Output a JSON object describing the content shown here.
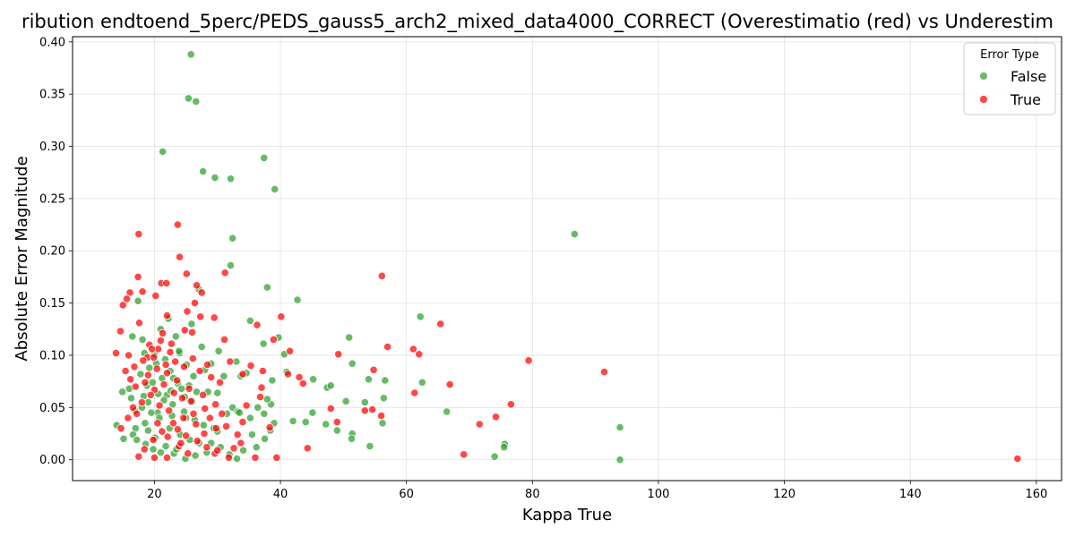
{
  "chart_data": {
    "type": "scatter",
    "title": "ribution endtoend_5perc/PEDS_gauss5_arch2_mixed_data4000_CORRECT (Overestimatio (red) vs Underestim",
    "xlabel": "Kappa True",
    "ylabel": "Absolute Error Magnitude",
    "xlim": [
      7,
      164
    ],
    "ylim": [
      -0.02,
      0.405
    ],
    "x_ticks": [
      20,
      40,
      60,
      80,
      100,
      120,
      140,
      160
    ],
    "y_ticks": [
      0.0,
      0.05,
      0.1,
      0.15,
      0.2,
      0.25,
      0.3,
      0.35,
      0.4
    ],
    "x_tick_labels": [
      "20",
      "40",
      "60",
      "80",
      "100",
      "120",
      "140",
      "160"
    ],
    "y_tick_labels": [
      "0.00",
      "0.05",
      "0.10",
      "0.15",
      "0.20",
      "0.25",
      "0.30",
      "0.35",
      "0.40"
    ],
    "grid": true,
    "legend": {
      "title": "Error Type",
      "placement": "upper-right"
    },
    "series": [
      {
        "name": "False",
        "color": "#2ca02c",
        "points": [
          [
            25.8,
            0.388
          ],
          [
            25.4,
            0.346
          ],
          [
            26.6,
            0.343
          ],
          [
            21.3,
            0.295
          ],
          [
            37.4,
            0.289
          ],
          [
            27.7,
            0.276
          ],
          [
            29.6,
            0.27
          ],
          [
            32.1,
            0.269
          ],
          [
            39.1,
            0.259
          ],
          [
            32.4,
            0.212
          ],
          [
            86.7,
            0.216
          ],
          [
            32.1,
            0.186
          ],
          [
            37.9,
            0.165
          ],
          [
            27.1,
            0.163
          ],
          [
            42.7,
            0.153
          ],
          [
            22.2,
            0.135
          ],
          [
            35.2,
            0.133
          ],
          [
            62.2,
            0.137
          ],
          [
            25.9,
            0.13
          ],
          [
            39.7,
            0.117
          ],
          [
            50.9,
            0.117
          ],
          [
            37.3,
            0.111
          ],
          [
            17.4,
            0.152
          ],
          [
            21.0,
            0.125
          ],
          [
            18.1,
            0.115
          ],
          [
            16.5,
            0.118
          ],
          [
            23.4,
            0.118
          ],
          [
            27.5,
            0.108
          ],
          [
            30.2,
            0.104
          ],
          [
            24.0,
            0.102
          ],
          [
            20.0,
            0.101
          ],
          [
            33.0,
            0.094
          ],
          [
            29.0,
            0.092
          ],
          [
            34.6,
            0.083
          ],
          [
            41.0,
            0.084
          ],
          [
            51.4,
            0.092
          ],
          [
            54.0,
            0.077
          ],
          [
            56.6,
            0.076
          ],
          [
            62.5,
            0.074
          ],
          [
            45.2,
            0.077
          ],
          [
            47.4,
            0.069
          ],
          [
            48.0,
            0.071
          ],
          [
            33.7,
            0.08
          ],
          [
            38.7,
            0.076
          ],
          [
            28.0,
            0.086
          ],
          [
            31.0,
            0.08
          ],
          [
            23.0,
            0.078
          ],
          [
            18.8,
            0.071
          ],
          [
            14.9,
            0.065
          ],
          [
            16.3,
            0.059
          ],
          [
            19.0,
            0.055
          ],
          [
            20.6,
            0.063
          ],
          [
            22.0,
            0.062
          ],
          [
            24.8,
            0.06
          ],
          [
            26.0,
            0.056
          ],
          [
            28.5,
            0.065
          ],
          [
            30.0,
            0.064
          ],
          [
            32.4,
            0.05
          ],
          [
            33.2,
            0.046
          ],
          [
            36.4,
            0.05
          ],
          [
            38.5,
            0.053
          ],
          [
            50.4,
            0.056
          ],
          [
            53.4,
            0.055
          ],
          [
            56.4,
            0.059
          ],
          [
            66.4,
            0.046
          ],
          [
            35.2,
            0.04
          ],
          [
            37.4,
            0.044
          ],
          [
            39.0,
            0.035
          ],
          [
            42.0,
            0.037
          ],
          [
            44.0,
            0.036
          ],
          [
            45.1,
            0.045
          ],
          [
            47.2,
            0.034
          ],
          [
            49.0,
            0.028
          ],
          [
            51.4,
            0.025
          ],
          [
            51.3,
            0.02
          ],
          [
            54.2,
            0.013
          ],
          [
            56.2,
            0.035
          ],
          [
            31.5,
            0.044
          ],
          [
            33.5,
            0.045
          ],
          [
            29.4,
            0.03
          ],
          [
            30.0,
            0.027
          ],
          [
            27.8,
            0.033
          ],
          [
            25.0,
            0.04
          ],
          [
            22.8,
            0.042
          ],
          [
            20.5,
            0.045
          ],
          [
            18.5,
            0.035
          ],
          [
            17.0,
            0.03
          ],
          [
            14.0,
            0.033
          ],
          [
            15.1,
            0.02
          ],
          [
            16.6,
            0.024
          ],
          [
            18.6,
            0.015
          ],
          [
            19.8,
            0.01
          ],
          [
            21.0,
            0.007
          ],
          [
            23.1,
            0.006
          ],
          [
            24.9,
            0.001
          ],
          [
            26.5,
            0.004
          ],
          [
            28.3,
            0.007
          ],
          [
            30.5,
            0.012
          ],
          [
            31.9,
            0.005
          ],
          [
            33.1,
            0.001
          ],
          [
            36.2,
            0.012
          ],
          [
            37.5,
            0.02
          ],
          [
            38.4,
            0.028
          ],
          [
            74.0,
            0.003
          ],
          [
            75.6,
            0.015
          ],
          [
            75.5,
            0.012
          ],
          [
            93.9,
            0.031
          ],
          [
            93.9,
            0.0
          ],
          [
            19.2,
            0.088
          ],
          [
            20.3,
            0.092
          ],
          [
            21.7,
            0.096
          ],
          [
            22.5,
            0.085
          ],
          [
            23.7,
            0.073
          ],
          [
            24.3,
            0.068
          ],
          [
            25.5,
            0.071
          ],
          [
            26.7,
            0.065
          ],
          [
            17.8,
            0.082
          ],
          [
            18.0,
            0.05
          ],
          [
            19.5,
            0.045
          ],
          [
            20.8,
            0.04
          ],
          [
            22.4,
            0.03
          ],
          [
            24.1,
            0.024
          ],
          [
            25.6,
            0.019
          ],
          [
            27.1,
            0.016
          ],
          [
            16.9,
            0.047
          ],
          [
            18.3,
            0.061
          ],
          [
            19.7,
            0.074
          ],
          [
            21.2,
            0.078
          ],
          [
            22.9,
            0.053
          ],
          [
            24.7,
            0.046
          ],
          [
            26.4,
            0.038
          ],
          [
            20.1,
            0.021
          ],
          [
            21.8,
            0.013
          ],
          [
            23.5,
            0.01
          ],
          [
            17.2,
            0.019
          ],
          [
            19.0,
            0.028
          ],
          [
            29.0,
            0.016
          ],
          [
            34.1,
            0.009
          ],
          [
            35.5,
            0.024
          ],
          [
            37.9,
            0.058
          ],
          [
            40.6,
            0.101
          ],
          [
            23.9,
            0.104
          ],
          [
            25.1,
            0.091
          ],
          [
            26.2,
            0.08
          ],
          [
            18.4,
            0.102
          ],
          [
            16.0,
            0.068
          ],
          [
            21.5,
            0.057
          ],
          [
            22.6,
            0.066
          ]
        ]
      },
      {
        "name": "True",
        "color": "#ff0000",
        "points": [
          [
            157.0,
            0.001
          ],
          [
            23.7,
            0.225
          ],
          [
            17.5,
            0.216
          ],
          [
            24.0,
            0.194
          ],
          [
            31.2,
            0.179
          ],
          [
            25.1,
            0.178
          ],
          [
            56.1,
            0.176
          ],
          [
            17.4,
            0.175
          ],
          [
            21.1,
            0.169
          ],
          [
            21.9,
            0.169
          ],
          [
            26.7,
            0.167
          ],
          [
            27.5,
            0.16
          ],
          [
            16.1,
            0.16
          ],
          [
            18.1,
            0.161
          ],
          [
            20.2,
            0.157
          ],
          [
            15.6,
            0.154
          ],
          [
            15.0,
            0.148
          ],
          [
            26.4,
            0.15
          ],
          [
            25.2,
            0.142
          ],
          [
            22.0,
            0.138
          ],
          [
            27.3,
            0.137
          ],
          [
            29.5,
            0.136
          ],
          [
            40.1,
            0.137
          ],
          [
            65.4,
            0.13
          ],
          [
            36.3,
            0.129
          ],
          [
            17.6,
            0.131
          ],
          [
            24.8,
            0.124
          ],
          [
            26.0,
            0.122
          ],
          [
            31.1,
            0.115
          ],
          [
            38.9,
            0.115
          ],
          [
            14.6,
            0.123
          ],
          [
            57.0,
            0.108
          ],
          [
            61.1,
            0.106
          ],
          [
            62.0,
            0.101
          ],
          [
            49.2,
            0.101
          ],
          [
            41.5,
            0.104
          ],
          [
            19.2,
            0.11
          ],
          [
            20.6,
            0.106
          ],
          [
            22.5,
            0.103
          ],
          [
            13.9,
            0.102
          ],
          [
            15.9,
            0.1
          ],
          [
            18.9,
            0.098
          ],
          [
            79.4,
            0.095
          ],
          [
            32.0,
            0.094
          ],
          [
            35.3,
            0.09
          ],
          [
            54.8,
            0.086
          ],
          [
            91.4,
            0.084
          ],
          [
            41.2,
            0.082
          ],
          [
            43.0,
            0.079
          ],
          [
            43.6,
            0.073
          ],
          [
            66.9,
            0.072
          ],
          [
            61.3,
            0.064
          ],
          [
            27.2,
            0.085
          ],
          [
            28.4,
            0.091
          ],
          [
            29.0,
            0.079
          ],
          [
            30.4,
            0.074
          ],
          [
            34.0,
            0.082
          ],
          [
            37.0,
            0.069
          ],
          [
            15.4,
            0.085
          ],
          [
            16.2,
            0.077
          ],
          [
            17.0,
            0.07
          ],
          [
            20.0,
            0.067
          ],
          [
            21.5,
            0.072
          ],
          [
            23.1,
            0.064
          ],
          [
            24.4,
            0.059
          ],
          [
            25.8,
            0.056
          ],
          [
            28.0,
            0.049
          ],
          [
            29.7,
            0.053
          ],
          [
            30.7,
            0.044
          ],
          [
            34.6,
            0.052
          ],
          [
            36.8,
            0.06
          ],
          [
            48.0,
            0.049
          ],
          [
            53.4,
            0.047
          ],
          [
            54.6,
            0.048
          ],
          [
            56.0,
            0.042
          ],
          [
            76.6,
            0.053
          ],
          [
            74.2,
            0.041
          ],
          [
            71.6,
            0.034
          ],
          [
            69.1,
            0.005
          ],
          [
            49.0,
            0.036
          ],
          [
            44.3,
            0.011
          ],
          [
            39.4,
            0.002
          ],
          [
            38.3,
            0.031
          ],
          [
            34.0,
            0.036
          ],
          [
            33.2,
            0.024
          ],
          [
            29.8,
            0.03
          ],
          [
            29.6,
            0.006
          ],
          [
            31.8,
            0.002
          ],
          [
            36.0,
            0.002
          ],
          [
            22.0,
            0.002
          ],
          [
            20.0,
            0.002
          ],
          [
            17.5,
            0.003
          ],
          [
            18.4,
            0.01
          ],
          [
            19.8,
            0.019
          ],
          [
            21.2,
            0.027
          ],
          [
            23.0,
            0.035
          ],
          [
            24.6,
            0.04
          ],
          [
            26.2,
            0.044
          ],
          [
            14.7,
            0.03
          ],
          [
            15.8,
            0.04
          ],
          [
            16.6,
            0.05
          ],
          [
            18.0,
            0.055
          ],
          [
            19.4,
            0.062
          ],
          [
            20.8,
            0.052
          ],
          [
            22.3,
            0.047
          ],
          [
            23.7,
            0.029
          ],
          [
            25.0,
            0.023
          ],
          [
            26.8,
            0.018
          ],
          [
            28.3,
            0.012
          ],
          [
            30.0,
            0.009
          ],
          [
            32.6,
            0.011
          ],
          [
            19.0,
            0.081
          ],
          [
            20.4,
            0.087
          ],
          [
            21.8,
            0.091
          ],
          [
            23.3,
            0.094
          ],
          [
            24.7,
            0.089
          ],
          [
            26.1,
            0.097
          ],
          [
            22.7,
            0.111
          ],
          [
            21.3,
            0.121
          ],
          [
            19.9,
            0.098
          ],
          [
            18.5,
            0.074
          ],
          [
            17.2,
            0.044
          ],
          [
            23.9,
            0.013
          ],
          [
            25.3,
            0.006
          ],
          [
            27.9,
            0.025
          ],
          [
            31.4,
            0.032
          ],
          [
            33.7,
            0.016
          ],
          [
            37.2,
            0.085
          ],
          [
            22.0,
            0.083
          ],
          [
            23.6,
            0.076
          ],
          [
            25.5,
            0.068
          ],
          [
            27.7,
            0.062
          ],
          [
            16.8,
            0.089
          ],
          [
            18.2,
            0.095
          ],
          [
            19.6,
            0.106
          ],
          [
            21.0,
            0.114
          ],
          [
            20.5,
            0.035
          ],
          [
            22.1,
            0.022
          ],
          [
            24.2,
            0.016
          ],
          [
            26.6,
            0.034
          ],
          [
            28.8,
            0.04
          ]
        ]
      }
    ]
  }
}
